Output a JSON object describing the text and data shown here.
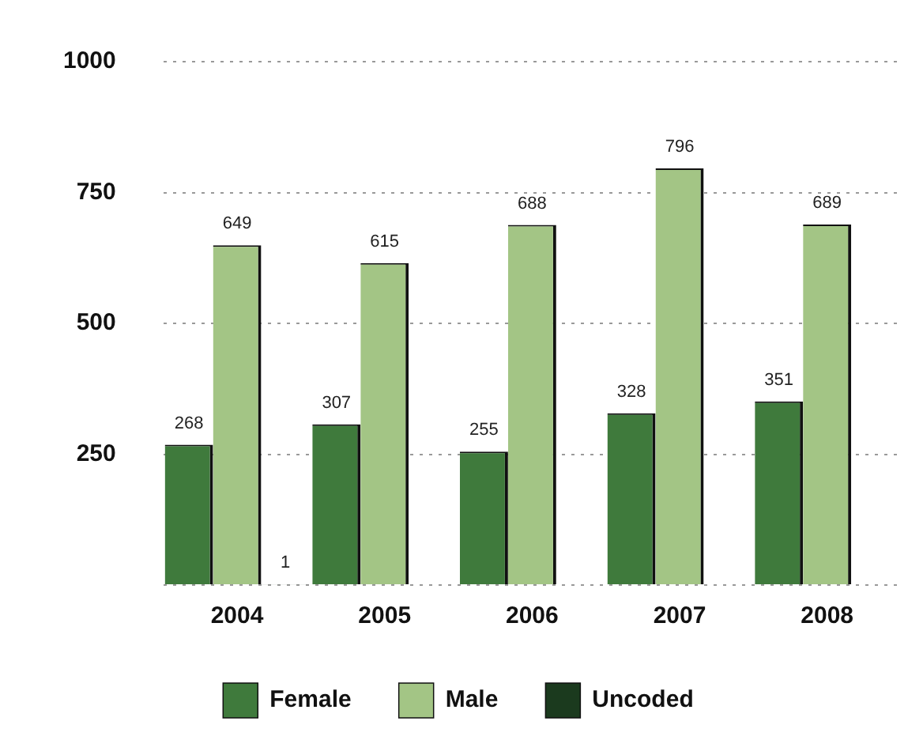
{
  "chart_data": {
    "type": "bar",
    "categories": [
      "2004",
      "2005",
      "2006",
      "2007",
      "2008"
    ],
    "series": [
      {
        "name": "Female",
        "color": "#3f7a3c",
        "values": [
          268,
          307,
          255,
          328,
          351
        ]
      },
      {
        "name": "Male",
        "color": "#a3c585",
        "values": [
          649,
          615,
          688,
          796,
          689
        ]
      },
      {
        "name": "Uncoded",
        "color": "#1b3a1e",
        "values": [
          1,
          null,
          null,
          null,
          null
        ]
      }
    ],
    "ylim": [
      0,
      1000
    ],
    "yticks": [
      {
        "value": 0,
        "label": null
      },
      250,
      500,
      750,
      1000
    ],
    "grid": "y",
    "legend": "bottom",
    "data_labels": true
  }
}
